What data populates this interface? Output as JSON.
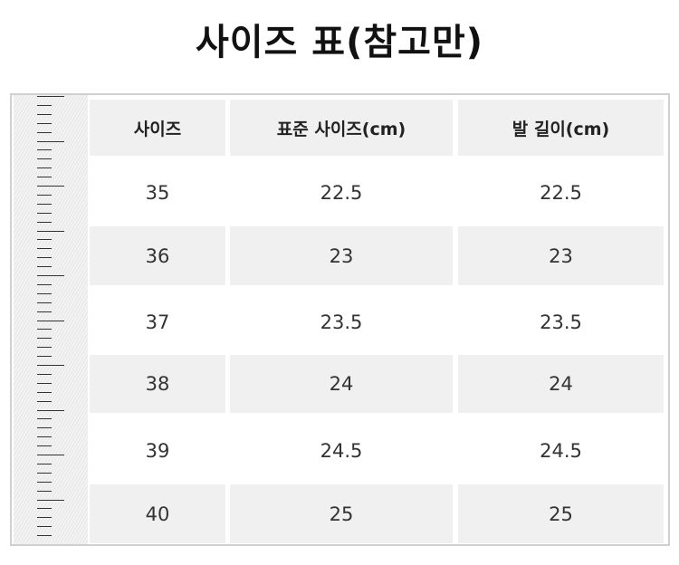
{
  "title": "사이즈 표(참고만)",
  "table": {
    "headers": [
      "사이즈",
      "표준 사이즈(cm)",
      "발 길이(cm)"
    ],
    "rows": [
      [
        "35",
        "22.5",
        "22.5"
      ],
      [
        "36",
        "23",
        "23"
      ],
      [
        "37",
        "23.5",
        "23.5"
      ],
      [
        "38",
        "24",
        "24"
      ],
      [
        "39",
        "24.5",
        "24.5"
      ],
      [
        "40",
        "25",
        "25"
      ]
    ]
  },
  "colors": {
    "row_fill": "#f0f0f0",
    "border": "#d0d0d0"
  }
}
